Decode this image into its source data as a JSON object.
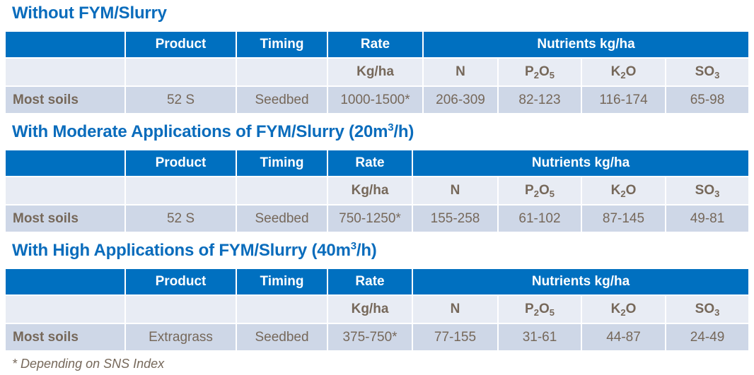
{
  "colors": {
    "header": "#0070c0",
    "subheader": "#e8ecf4",
    "row": "#ced7e7",
    "title": "#0a6cbc",
    "text": "#76685a"
  },
  "tables": [
    {
      "title": "Without FYM/Slurry",
      "title_sup": "",
      "title_end": "",
      "headers": {
        "product": "Product",
        "timing": "Timing",
        "rate": "Rate",
        "nutrients": "Nutrients kg/ha"
      },
      "units": {
        "rate": "Kg/ha",
        "n": "N",
        "p": "P",
        "p_sub1": "2",
        "p_mid": "O",
        "p_sub2": "5",
        "k": "K",
        "k_sub": "2",
        "k_end": "O",
        "s": "SO",
        "s_sub": "3"
      },
      "row": {
        "label": "Most soils",
        "product": "52 S",
        "timing": "Seedbed",
        "rate": "1000-1500*",
        "n": "206-309",
        "p2o5": "82-123",
        "k2o": "116-174",
        "so3": "65-98"
      }
    },
    {
      "title": "With Moderate Applications of FYM/Slurry (20m",
      "title_sup": "3",
      "title_end": "/h)",
      "headers": {
        "product": "Product",
        "timing": "Timing",
        "rate": "Rate",
        "nutrients": "Nutrients kg/ha"
      },
      "units": {
        "rate": "Kg/ha",
        "n": "N",
        "p": "P",
        "p_sub1": "2",
        "p_mid": "O",
        "p_sub2": "5",
        "k": "K",
        "k_sub": "2",
        "k_end": "O",
        "s": "SO",
        "s_sub": "3"
      },
      "row": {
        "label": "Most soils",
        "product": "52 S",
        "timing": "Seedbed",
        "rate": "750-1250*",
        "n": "155-258",
        "p2o5": "61-102",
        "k2o": "87-145",
        "so3": "49-81"
      }
    },
    {
      "title": "With High Applications of FYM/Slurry (40m",
      "title_sup": "3",
      "title_end": "/h)",
      "headers": {
        "product": "Product",
        "timing": "Timing",
        "rate": "Rate",
        "nutrients": "Nutrients kg/ha"
      },
      "units": {
        "rate": "Kg/ha",
        "n": "N",
        "p": "P",
        "p_sub1": "2",
        "p_mid": "O",
        "p_sub2": "5",
        "k": "K",
        "k_sub": "2",
        "k_end": "O",
        "s": "SO",
        "s_sub": "3"
      },
      "row": {
        "label": "Most soils",
        "product": "Extragrass",
        "timing": "Seedbed",
        "rate": "375-750*",
        "n": "77-155",
        "p2o5": "31-61",
        "k2o": "44-87",
        "so3": "24-49"
      }
    }
  ],
  "footnote": "* Depending on SNS Index"
}
